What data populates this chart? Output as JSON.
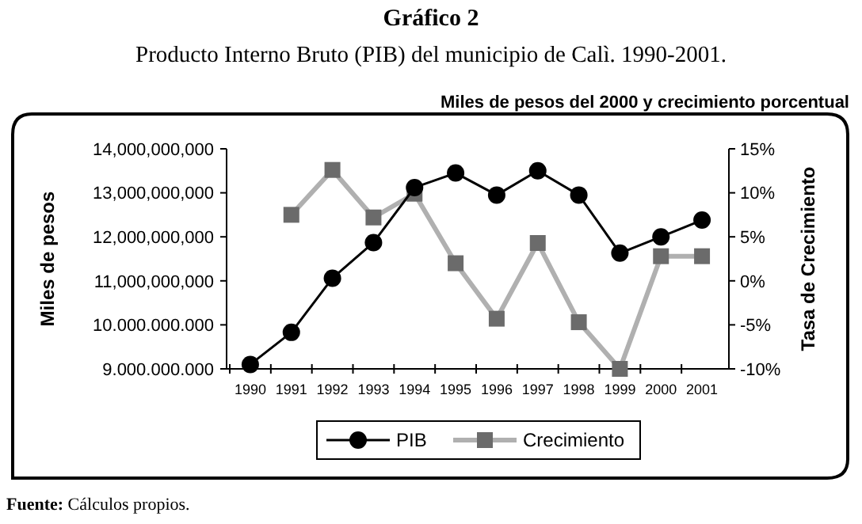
{
  "chart_data": {
    "type": "line",
    "title": "Gráfico 2",
    "subtitle": "Producto Interno Bruto (PIB) del municipio de Calì. 1990-2001.",
    "ylabel": "Miles de pesos",
    "y2label": "Tasa de Crecimiento",
    "annotations": [
      "Miles de pesos del 2000 y crecimiento porcentual",
      "Fuente: Cálculos propios."
    ],
    "categories": [
      "1990",
      "1991",
      "1992",
      "1993",
      "1994",
      "1995",
      "1996",
      "1997",
      "1998",
      "1999",
      "2000",
      "2001"
    ],
    "series": [
      {
        "name": "PIB",
        "color": "#000000",
        "marker": "circle",
        "values": [
          9100000000,
          9830000000,
          11060000000,
          11870000000,
          13120000000,
          13450000000,
          12950000000,
          13500000000,
          12950000000,
          11630000000,
          12000000000,
          12380000000
        ]
      },
      {
        "name": "Crecimiento",
        "color": "#b0b0b0",
        "marker": "square",
        "axis": "y2",
        "values": [
          null,
          7.5,
          12.6,
          7.2,
          9.9,
          2.0,
          -4.3,
          4.3,
          -4.7,
          -10,
          2.8,
          2.8
        ]
      }
    ],
    "ylim": [
      9000000000,
      14000000000
    ],
    "yticks": [
      {
        "value": 9000000000,
        "label": "9.000.000.000"
      },
      {
        "value": 10000000000,
        "label": "10.000.000.000"
      },
      {
        "value": 11000000000,
        "label": "11,000,000,000"
      },
      {
        "value": 12000000000,
        "label": "12,000,000,000"
      },
      {
        "value": 13000000000,
        "label": "13,000,000,000"
      },
      {
        "value": 14000000000,
        "label": "14,000,000,000"
      }
    ],
    "y2lim": [
      -10,
      15
    ],
    "y2ticks": [
      {
        "value": -10,
        "label": "-10%"
      },
      {
        "value": -5,
        "label": "-5%"
      },
      {
        "value": 0,
        "label": "0%"
      },
      {
        "value": 5,
        "label": "5%"
      },
      {
        "value": 10,
        "label": "10%"
      },
      {
        "value": 15,
        "label": "15%"
      }
    ],
    "grid": false,
    "legend": "bottom",
    "line_style": "solid"
  }
}
